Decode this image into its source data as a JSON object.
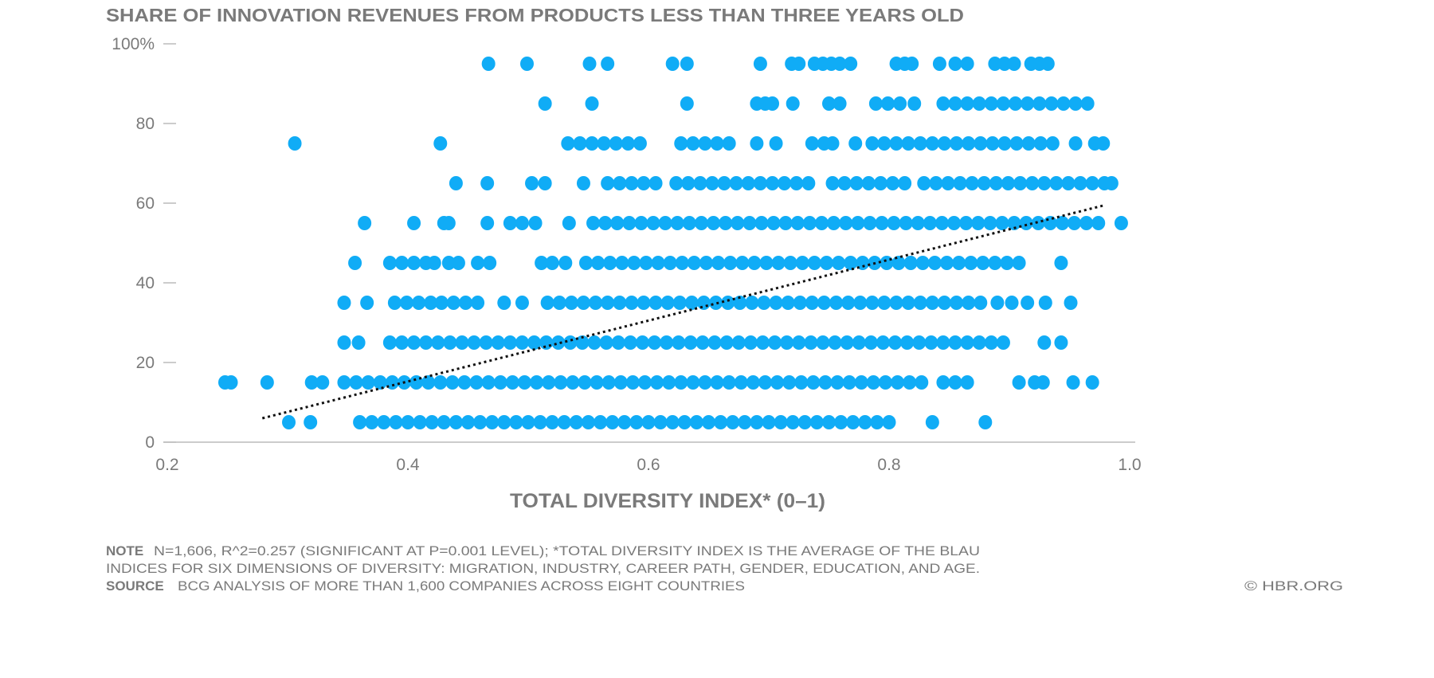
{
  "chart_data": {
    "type": "scatter",
    "title": "SHARE OF INNOVATION REVENUES FROM PRODUCTS LESS THAN THREE YEARS OLD",
    "xlabel": "TOTAL DIVERSITY INDEX* (0–1)",
    "ylabel": "",
    "xlim": [
      0.2,
      1.0
    ],
    "ylim": [
      0,
      100
    ],
    "x_ticks": [
      "0.2",
      "0.4",
      "0.6",
      "0.8",
      "1.0"
    ],
    "x_tick_values": [
      0.2,
      0.4,
      0.6,
      0.8,
      1.0
    ],
    "y_ticks": [
      "0",
      "20",
      "40",
      "60",
      "80",
      "100%"
    ],
    "y_tick_values": [
      0,
      20,
      40,
      60,
      80,
      100
    ],
    "grid": false,
    "point_color": "#10acf6",
    "trendline": {
      "style": "dotted",
      "color": "#111111",
      "x": [
        0.279,
        0.978
      ],
      "y": [
        6,
        59.4
      ]
    },
    "rows": [
      {
        "y": 95,
        "x": [
          0.467,
          0.499,
          0.551,
          0.566,
          0.62,
          0.632,
          0.693,
          0.719,
          0.725,
          0.738,
          0.745,
          0.752,
          0.759,
          0.768,
          0.806,
          0.813,
          0.819,
          0.842,
          0.855,
          0.865,
          0.888,
          0.896,
          0.904,
          0.918,
          0.925,
          0.932
        ]
      },
      {
        "y": 85,
        "x": [
          0.514,
          0.553,
          0.632,
          0.69,
          0.697,
          0.703,
          0.72,
          0.75,
          0.759,
          0.789,
          0.799,
          0.809,
          0.821,
          0.845,
          0.855,
          0.865,
          0.875,
          0.885,
          0.895,
          0.905,
          0.915,
          0.925,
          0.935,
          0.945,
          0.955,
          0.965
        ]
      },
      {
        "y": 75,
        "x": [
          0.306,
          0.427,
          0.533,
          0.543,
          0.553,
          0.563,
          0.573,
          0.583,
          0.593,
          0.627,
          0.637,
          0.647,
          0.657,
          0.667,
          0.69,
          0.706,
          0.736,
          0.746,
          0.753,
          0.772,
          0.786,
          0.796,
          0.806,
          0.816,
          0.826,
          0.836,
          0.846,
          0.856,
          0.866,
          0.876,
          0.886,
          0.896,
          0.906,
          0.916,
          0.926,
          0.936,
          0.955,
          0.971,
          0.978
        ]
      },
      {
        "y": 65,
        "x": [
          0.44,
          0.466,
          0.503,
          0.514,
          0.546,
          0.566,
          0.576,
          0.586,
          0.596,
          0.606,
          0.623,
          0.633,
          0.643,
          0.653,
          0.663,
          0.673,
          0.683,
          0.693,
          0.703,
          0.713,
          0.723,
          0.733,
          0.753,
          0.763,
          0.773,
          0.783,
          0.793,
          0.803,
          0.813,
          0.829,
          0.839,
          0.849,
          0.859,
          0.869,
          0.879,
          0.889,
          0.899,
          0.909,
          0.919,
          0.929,
          0.939,
          0.949,
          0.959,
          0.969,
          0.979,
          0.985
        ]
      },
      {
        "y": 55,
        "x": [
          0.364,
          0.405,
          0.43,
          0.434,
          0.466,
          0.485,
          0.495,
          0.506,
          0.534,
          0.554,
          0.564,
          0.574,
          0.584,
          0.594,
          0.604,
          0.614,
          0.624,
          0.634,
          0.644,
          0.654,
          0.664,
          0.674,
          0.684,
          0.694,
          0.704,
          0.714,
          0.724,
          0.734,
          0.744,
          0.754,
          0.764,
          0.774,
          0.784,
          0.794,
          0.804,
          0.814,
          0.824,
          0.834,
          0.844,
          0.854,
          0.864,
          0.874,
          0.884,
          0.894,
          0.904,
          0.914,
          0.924,
          0.934,
          0.944,
          0.954,
          0.964,
          0.974,
          0.993
        ]
      },
      {
        "y": 45,
        "x": [
          0.356,
          0.385,
          0.395,
          0.405,
          0.415,
          0.422,
          0.434,
          0.442,
          0.458,
          0.468,
          0.511,
          0.52,
          0.531,
          0.548,
          0.558,
          0.568,
          0.578,
          0.588,
          0.598,
          0.608,
          0.618,
          0.628,
          0.638,
          0.648,
          0.658,
          0.668,
          0.678,
          0.688,
          0.698,
          0.708,
          0.718,
          0.728,
          0.738,
          0.748,
          0.758,
          0.768,
          0.778,
          0.788,
          0.798,
          0.808,
          0.818,
          0.828,
          0.838,
          0.848,
          0.858,
          0.868,
          0.878,
          0.888,
          0.898,
          0.908,
          0.943
        ]
      },
      {
        "y": 35,
        "x": [
          0.347,
          0.366,
          0.389,
          0.399,
          0.409,
          0.419,
          0.428,
          0.438,
          0.448,
          0.458,
          0.48,
          0.495,
          0.516,
          0.526,
          0.536,
          0.546,
          0.556,
          0.566,
          0.576,
          0.586,
          0.596,
          0.606,
          0.616,
          0.626,
          0.636,
          0.646,
          0.656,
          0.666,
          0.676,
          0.686,
          0.696,
          0.706,
          0.716,
          0.726,
          0.736,
          0.746,
          0.756,
          0.766,
          0.776,
          0.786,
          0.796,
          0.806,
          0.816,
          0.826,
          0.836,
          0.846,
          0.856,
          0.866,
          0.876,
          0.89,
          0.902,
          0.915,
          0.93,
          0.951
        ]
      },
      {
        "y": 25,
        "x": [
          0.347,
          0.359,
          0.385,
          0.395,
          0.405,
          0.415,
          0.425,
          0.435,
          0.445,
          0.455,
          0.465,
          0.475,
          0.485,
          0.495,
          0.505,
          0.515,
          0.525,
          0.535,
          0.545,
          0.555,
          0.565,
          0.575,
          0.585,
          0.595,
          0.605,
          0.615,
          0.625,
          0.635,
          0.645,
          0.655,
          0.665,
          0.675,
          0.685,
          0.695,
          0.705,
          0.715,
          0.725,
          0.735,
          0.745,
          0.755,
          0.765,
          0.775,
          0.785,
          0.795,
          0.805,
          0.815,
          0.825,
          0.835,
          0.845,
          0.855,
          0.865,
          0.875,
          0.885,
          0.895,
          0.929,
          0.943
        ]
      },
      {
        "y": 15,
        "x": [
          0.248,
          0.253,
          0.283,
          0.32,
          0.329,
          0.347,
          0.357,
          0.367,
          0.377,
          0.387,
          0.397,
          0.407,
          0.417,
          0.427,
          0.437,
          0.447,
          0.457,
          0.467,
          0.477,
          0.487,
          0.497,
          0.507,
          0.517,
          0.527,
          0.537,
          0.547,
          0.557,
          0.567,
          0.577,
          0.587,
          0.597,
          0.607,
          0.617,
          0.627,
          0.637,
          0.647,
          0.657,
          0.667,
          0.677,
          0.687,
          0.697,
          0.707,
          0.717,
          0.727,
          0.737,
          0.747,
          0.757,
          0.767,
          0.777,
          0.787,
          0.797,
          0.807,
          0.817,
          0.827,
          0.845,
          0.855,
          0.865,
          0.908,
          0.921,
          0.928,
          0.953,
          0.969
        ]
      },
      {
        "y": 5,
        "x": [
          0.301,
          0.319,
          0.36,
          0.37,
          0.38,
          0.39,
          0.4,
          0.41,
          0.42,
          0.43,
          0.44,
          0.45,
          0.46,
          0.47,
          0.48,
          0.49,
          0.5,
          0.51,
          0.52,
          0.53,
          0.54,
          0.55,
          0.56,
          0.57,
          0.58,
          0.59,
          0.6,
          0.61,
          0.62,
          0.63,
          0.64,
          0.65,
          0.66,
          0.67,
          0.68,
          0.69,
          0.7,
          0.71,
          0.72,
          0.73,
          0.74,
          0.75,
          0.76,
          0.77,
          0.78,
          0.79,
          0.8,
          0.836,
          0.88
        ]
      }
    ]
  },
  "footer": {
    "note_label": "NOTE",
    "note_line1": "N=1,606, R^2=0.257 (SIGNIFICANT AT P=0.001 LEVEL); *TOTAL DIVERSITY INDEX IS THE AVERAGE OF THE BLAU",
    "note_line2": "INDICES FOR SIX DIMENSIONS OF DIVERSITY: MIGRATION, INDUSTRY, CAREER PATH, GENDER, EDUCATION, AND AGE.",
    "source_label": "SOURCE",
    "source_text": "BCG ANALYSIS OF MORE THAN 1,600 COMPANIES ACROSS EIGHT COUNTRIES",
    "copyright": "© HBR.ORG"
  }
}
